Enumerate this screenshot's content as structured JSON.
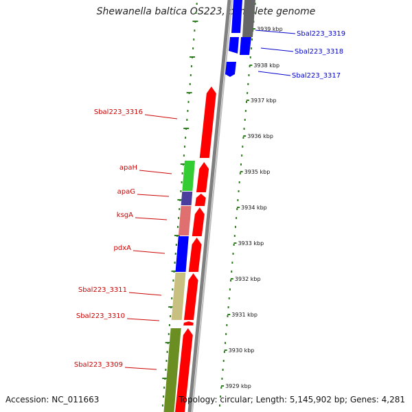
{
  "title": "Shewanella baltica OS223, complete genome",
  "footer": {
    "accession": "Accession: NC_011663",
    "summary": "Topology: circular; Length: 5,145,902 bp; Genes: 4,281"
  },
  "colors": {
    "reverse_strand_gene": "#ff0000",
    "forward_strand_gene": "#0000ff",
    "label_red": "#cc0000",
    "label_blue": "#0000cc",
    "backbone": "#808080",
    "tick_marks": "#2e7d1e",
    "cog_green": "#33cc33",
    "cog_indigo": "#4a3f9e",
    "cog_pink": "#e07070",
    "cog_blue": "#0000ff",
    "cog_khaki": "#c8c080",
    "cog_olive": "#6b8e23",
    "top_grey_gene": "#666666"
  },
  "scale": {
    "labels": [
      "3939 kbp",
      "3938 kbp",
      "3937 kbp",
      "3936 kbp",
      "3935 kbp",
      "3934 kbp",
      "3933 kbp",
      "3932 kbp",
      "3931 kbp",
      "3930 kbp",
      "3929 kbp"
    ]
  },
  "genes": {
    "left_labels": [
      "Sbal223_3316",
      "apaH",
      "apaG",
      "ksgA",
      "pdxA",
      "Sbal223_3311",
      "Sbal223_3310",
      "Sbal223_3309"
    ],
    "right_labels": [
      "Sbal223_3319",
      "Sbal223_3318",
      "Sbal223_3317"
    ]
  }
}
